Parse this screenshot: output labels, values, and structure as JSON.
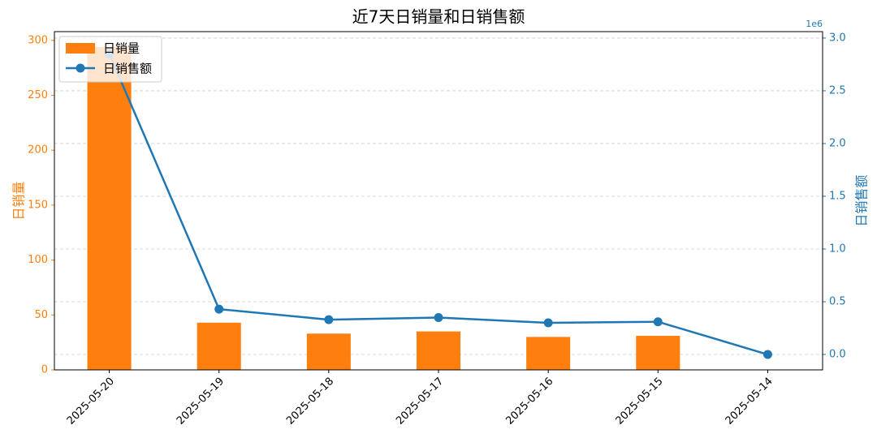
{
  "chart_data": {
    "type": "bar_line",
    "title": "近7天日销量和日销售额",
    "categories": [
      "2025-05-20",
      "2025-05-19",
      "2025-05-18",
      "2025-05-17",
      "2025-05-16",
      "2025-05-15",
      "2025-05-14"
    ],
    "series": [
      {
        "name": "日销量",
        "type": "bar",
        "color": "#ff7f0e",
        "values": [
          294,
          43,
          33,
          35,
          30,
          31,
          0
        ]
      },
      {
        "name": "日销售额",
        "type": "line",
        "axis": "y2",
        "color": "#1f77b4",
        "values": [
          2850000,
          430000,
          330000,
          350000,
          300000,
          310000,
          0
        ]
      }
    ],
    "ylabel": "日销量",
    "y2label": "日销售额",
    "y2_offset_label": "1e6",
    "ylim": [
      0,
      308
    ],
    "yticks": [
      0,
      50,
      100,
      150,
      200,
      250,
      300
    ],
    "y2lim": [
      -146000,
      3061000
    ],
    "y2ticks": [
      {
        "value": 0,
        "label": "0.0"
      },
      {
        "value": 500000,
        "label": "0.5"
      },
      {
        "value": 1000000,
        "label": "1.0"
      },
      {
        "value": 1500000,
        "label": "1.5"
      },
      {
        "value": 2000000,
        "label": "2.0"
      },
      {
        "value": 2500000,
        "label": "2.5"
      },
      {
        "value": 3000000,
        "label": "3.0"
      }
    ],
    "grid": true,
    "legend": "upper-left"
  }
}
